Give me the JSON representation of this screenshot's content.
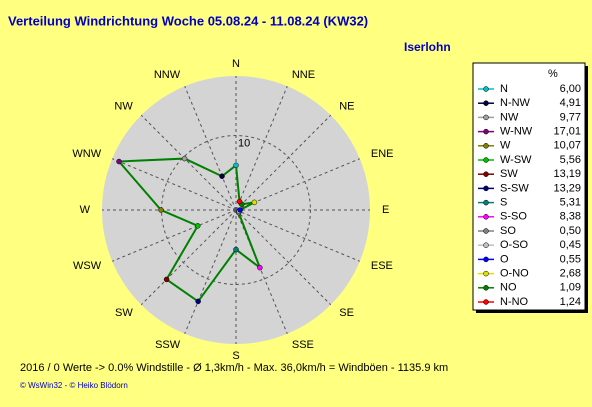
{
  "chart_data": {
    "type": "radar",
    "title": "Verteilung Windrichtung   Woche 05.08.24 - 11.08.24 (KW32)",
    "subtitle": "Iserlohn",
    "legend_unit": "%",
    "categories": [
      "N",
      "N-NW",
      "NW",
      "W-NW",
      "W",
      "W-SW",
      "SW",
      "S-SW",
      "S",
      "S-SO",
      "SO",
      "O-SO",
      "O",
      "O-NO",
      "NO",
      "N-NO"
    ],
    "directions": [
      "N",
      "NNW",
      "NW",
      "WNW",
      "W",
      "WSW",
      "SW",
      "SSW",
      "S",
      "SSE",
      "SE",
      "ESE",
      "E",
      "ENE",
      "NE",
      "NNE"
    ],
    "values": [
      6.0,
      4.91,
      9.77,
      17.01,
      10.07,
      5.56,
      13.19,
      13.29,
      5.31,
      8.38,
      0.5,
      0.45,
      0.55,
      2.68,
      1.09,
      1.24
    ],
    "value_labels": [
      "6,00",
      "4,91",
      "9,77",
      "17,01",
      "10,07",
      "5,56",
      "13,19",
      "13,29",
      "5,31",
      "8,38",
      "0,50",
      "0,45",
      "0,55",
      "2,68",
      "1,09",
      "1,24"
    ],
    "colors": [
      "#00c0c0",
      "#000040",
      "#a0a0a0",
      "#800080",
      "#808000",
      "#00c000",
      "#800000",
      "#000080",
      "#008080",
      "#ff00ff",
      "#808080",
      "#c0c0c0",
      "#0000ff",
      "#e0e000",
      "#008000",
      "#ff0000"
    ],
    "line_color": "#008000",
    "rlim": [
      0,
      18
    ],
    "rticks": [
      10
    ],
    "footer": "2016 / 0 Werte  -> 0.0% Windstille   -   Ø 1,3km/h  -  Max. 36,0km/h = Windböen   -   1135.9 km",
    "credit": "© WsWin32  -  © Heiko Blödorn"
  }
}
